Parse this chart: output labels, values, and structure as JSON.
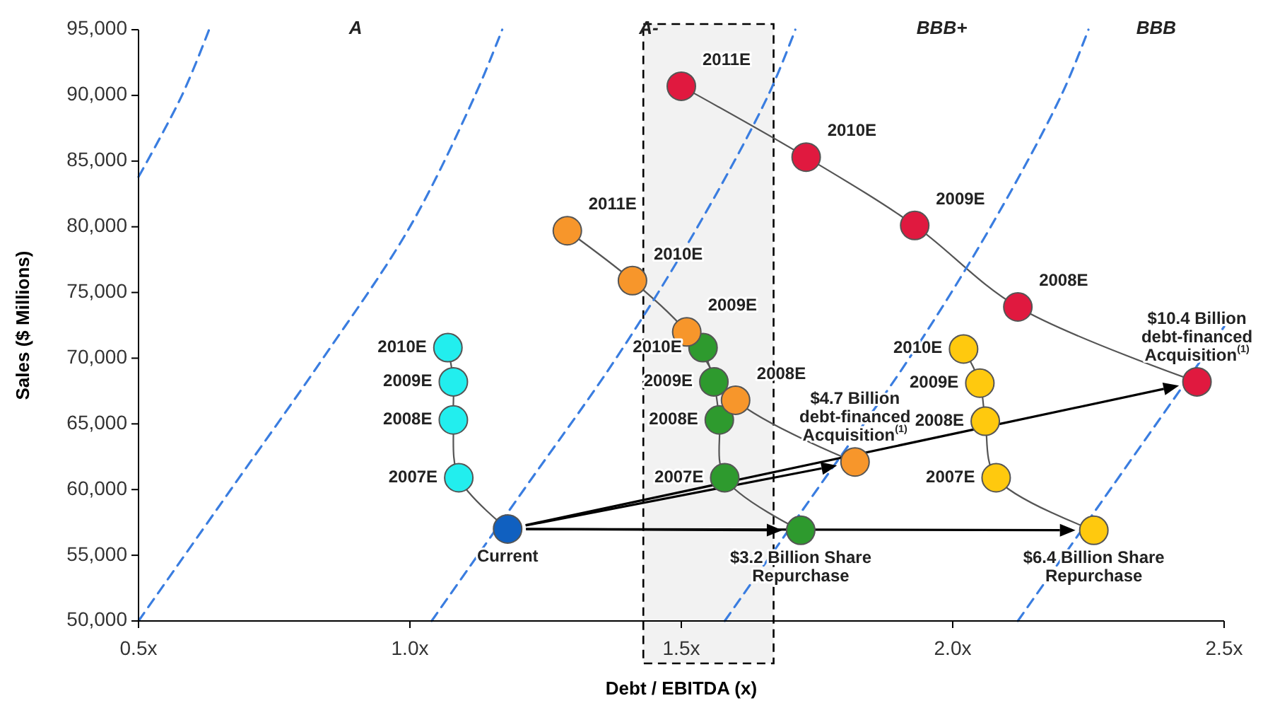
{
  "chart_data": {
    "type": "scatter",
    "xlabel": "Debt / EBITDA (x)",
    "ylabel": "Sales ($ Millions)",
    "xlim": [
      0.5,
      2.5
    ],
    "ylim": [
      50000,
      95000
    ],
    "xticks": [
      {
        "value": 0.5,
        "label": "0.5x"
      },
      {
        "value": 1.0,
        "label": "1.0x"
      },
      {
        "value": 1.5,
        "label": "1.5x"
      },
      {
        "value": 2.0,
        "label": "2.0x"
      },
      {
        "value": 2.5,
        "label": "2.5x"
      }
    ],
    "yticks": [
      {
        "value": 50000,
        "label": "50,000"
      },
      {
        "value": 55000,
        "label": "55,000"
      },
      {
        "value": 60000,
        "label": "60,000"
      },
      {
        "value": 65000,
        "label": "65,000"
      },
      {
        "value": 70000,
        "label": "70,000"
      },
      {
        "value": 75000,
        "label": "75,000"
      },
      {
        "value": 80000,
        "label": "80,000"
      },
      {
        "value": 85000,
        "label": "85,000"
      },
      {
        "value": 90000,
        "label": "90,000"
      },
      {
        "value": 95000,
        "label": "95,000"
      }
    ],
    "grid": false,
    "series": [
      {
        "type": "line",
        "marker": "circle",
        "color": "#22eeee",
        "colors": [
          "#1060c0",
          null,
          null,
          null,
          null
        ],
        "x": [
          1.18,
          1.09,
          1.08,
          1.08,
          1.07
        ],
        "values": [
          57000,
          60900,
          65300,
          68200,
          70800
        ]
      },
      {
        "type": "line",
        "marker": "circle",
        "color": "#2e9a2e",
        "x": [
          1.72,
          1.58,
          1.57,
          1.56,
          1.54
        ],
        "values": [
          56900,
          60900,
          65300,
          68200,
          70800
        ]
      },
      {
        "type": "line",
        "marker": "circle",
        "color": "#f7962b",
        "x": [
          1.82,
          1.6,
          1.51,
          1.41,
          1.29
        ],
        "values": [
          62100,
          66800,
          72000,
          75900,
          79700
        ]
      },
      {
        "type": "line",
        "marker": "circle",
        "color": "#e0193f",
        "x": [
          2.45,
          2.12,
          1.93,
          1.73,
          1.5
        ],
        "values": [
          68200,
          73900,
          80100,
          85300,
          90700
        ]
      },
      {
        "type": "line",
        "marker": "circle",
        "color": "#ffc90e",
        "x": [
          2.26,
          2.08,
          2.06,
          2.05,
          2.02
        ],
        "values": [
          56900,
          60900,
          65200,
          68100,
          70700
        ]
      },
      {
        "type": "line",
        "marker": "none",
        "line_style": "dashed",
        "color": "#3a7de0",
        "x": [
          0.5,
          0.58,
          0.63
        ],
        "values": [
          83800,
          90000,
          95000
        ]
      },
      {
        "type": "line",
        "marker": "none",
        "line_style": "dashed",
        "color": "#3a7de0",
        "x": [
          0.5,
          0.67,
          0.84,
          1.0,
          1.12,
          1.17
        ],
        "values": [
          50000,
          60000,
          70000,
          80000,
          90000,
          95000
        ]
      },
      {
        "type": "line",
        "marker": "none",
        "line_style": "dashed",
        "color": "#3a7de0",
        "x": [
          1.04,
          1.21,
          1.38,
          1.53,
          1.66,
          1.71
        ],
        "values": [
          50000,
          60000,
          70000,
          80000,
          90000,
          95000
        ]
      },
      {
        "type": "line",
        "marker": "none",
        "line_style": "dashed",
        "color": "#3a7de0",
        "x": [
          1.58,
          1.75,
          1.92,
          2.07,
          2.2,
          2.25
        ],
        "values": [
          50000,
          60000,
          70000,
          80000,
          90000,
          95000
        ]
      },
      {
        "type": "line",
        "marker": "none",
        "line_style": "dashed",
        "color": "#3a7de0",
        "x": [
          2.12,
          2.29,
          2.46,
          2.5
        ],
        "values": [
          50000,
          60000,
          70000,
          72400
        ]
      }
    ],
    "bands": [
      {
        "axis": "x",
        "from": 1.43,
        "to": 1.67,
        "color": "#000000"
      }
    ],
    "annotations": [
      "A",
      "A-",
      "BBB+",
      "BBB",
      {
        "text": "Current",
        "x": 1.18,
        "y": 57000
      },
      {
        "text": "2007E",
        "x": 1.09,
        "y": 60900
      },
      {
        "text": "2008E",
        "x": 1.08,
        "y": 65300
      },
      {
        "text": "2009E",
        "x": 1.08,
        "y": 68200
      },
      {
        "text": "2010E",
        "x": 1.07,
        "y": 70800
      },
      {
        "text": "2007E",
        "x": 1.58,
        "y": 60900
      },
      {
        "text": "2008E",
        "x": 1.57,
        "y": 65300
      },
      {
        "text": "2009E",
        "x": 1.56,
        "y": 68200
      },
      {
        "text": "2010E",
        "x": 1.54,
        "y": 70800
      },
      {
        "text": "2008E",
        "x": 1.6,
        "y": 66800
      },
      {
        "text": "2009E",
        "x": 1.51,
        "y": 72000
      },
      {
        "text": "2010E",
        "x": 1.41,
        "y": 75900
      },
      {
        "text": "2011E",
        "x": 1.29,
        "y": 79700
      },
      {
        "text": "2008E",
        "x": 2.12,
        "y": 73900
      },
      {
        "text": "2009E",
        "x": 1.93,
        "y": 80100
      },
      {
        "text": "2010E",
        "x": 1.73,
        "y": 85300
      },
      {
        "text": "2011E",
        "x": 1.5,
        "y": 90700
      },
      {
        "text": "2007E",
        "x": 2.08,
        "y": 60900
      },
      {
        "text": "2008E",
        "x": 2.06,
        "y": 65200
      },
      {
        "text": "2009E",
        "x": 2.05,
        "y": 68100
      },
      {
        "text": "2010E",
        "x": 2.02,
        "y": 70700
      },
      {
        "text": "$3.2 Billion Share\nRepurchase",
        "x": 1.72,
        "y": 56900
      },
      {
        "text": "$6.4 Billion Share\nRepurchase",
        "x": 2.26,
        "y": 56900
      },
      {
        "text": "$4.7 Billion\ndebt-financed\nAcquisition$^{(1)}$",
        "x": 1.82,
        "y": 62100
      },
      {
        "text": "$10.4 Billion\ndebt-financed\nAcquisition$^{(1)}$",
        "x": 2.45,
        "y": 68200
      }
    ]
  }
}
